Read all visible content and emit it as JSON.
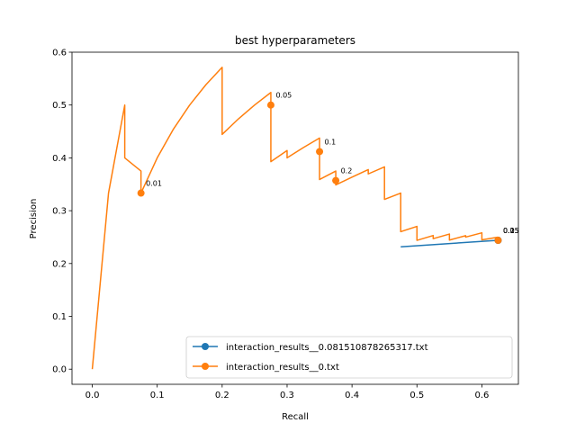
{
  "chart_data": {
    "type": "line",
    "title": "best hyperparameters",
    "xlabel": "Recall",
    "ylabel": "Precision",
    "xlim": [
      -0.03125,
      0.65625
    ],
    "ylim": [
      -0.0286,
      0.6
    ],
    "xticks": [
      0.0,
      0.1,
      0.2,
      0.3,
      0.4,
      0.5,
      0.6
    ],
    "yticks": [
      0.0,
      0.1,
      0.2,
      0.3,
      0.4,
      0.5,
      0.6
    ],
    "xtick_labels": [
      "0.0",
      "0.1",
      "0.2",
      "0.3",
      "0.4",
      "0.5",
      "0.6"
    ],
    "ytick_labels": [
      "0.0",
      "0.1",
      "0.2",
      "0.3",
      "0.4",
      "0.5",
      "0.6"
    ],
    "grid": false,
    "legend_position": "lower-right",
    "series": [
      {
        "name": "interaction_results__0.081510878265317.txt",
        "color": "#1f77b4",
        "x": [
          0.475,
          0.625
        ],
        "y": [
          0.2317,
          0.2439
        ],
        "markers": [
          {
            "x": 0.625,
            "y": 0.2439,
            "label": "0.05"
          },
          {
            "x": 0.625,
            "y": 0.2439,
            "label": "0.1"
          }
        ]
      },
      {
        "name": "interaction_results__0.txt",
        "color": "#ff7f0e",
        "x": [
          0.0,
          0.025,
          0.05,
          0.05,
          0.075,
          0.075,
          0.1,
          0.125,
          0.15,
          0.175,
          0.2,
          0.2,
          0.225,
          0.25,
          0.275,
          0.275,
          0.3,
          0.3,
          0.325,
          0.35,
          0.35,
          0.375,
          0.375,
          0.4,
          0.425,
          0.425,
          0.45,
          0.45,
          0.475,
          0.475,
          0.5,
          0.5,
          0.525,
          0.525,
          0.55,
          0.55,
          0.575,
          0.575,
          0.6,
          0.6,
          0.625
        ],
        "y": [
          0.0,
          0.3333,
          0.5,
          0.4,
          0.375,
          0.3333,
          0.4,
          0.4545,
          0.5,
          0.5385,
          0.5714,
          0.4444,
          0.4737,
          0.5,
          0.5238,
          0.3929,
          0.4138,
          0.4,
          0.4194,
          0.4375,
          0.359,
          0.375,
          0.3488,
          0.3636,
          0.3778,
          0.3696,
          0.383,
          0.3214,
          0.3333,
          0.2603,
          0.2703,
          0.2439,
          0.253,
          0.2471,
          0.2558,
          0.2444,
          0.2527,
          0.25,
          0.2581,
          0.2449,
          0.25
        ],
        "markers": [
          {
            "x": 0.075,
            "y": 0.3333,
            "label": "0.01"
          },
          {
            "x": 0.275,
            "y": 0.5,
            "label": "0.05"
          },
          {
            "x": 0.35,
            "y": 0.4118,
            "label": "0.1"
          },
          {
            "x": 0.375,
            "y": 0.3571,
            "label": "0.2"
          },
          {
            "x": 0.625,
            "y": 0.2439,
            "label": "0.25"
          }
        ]
      }
    ]
  }
}
